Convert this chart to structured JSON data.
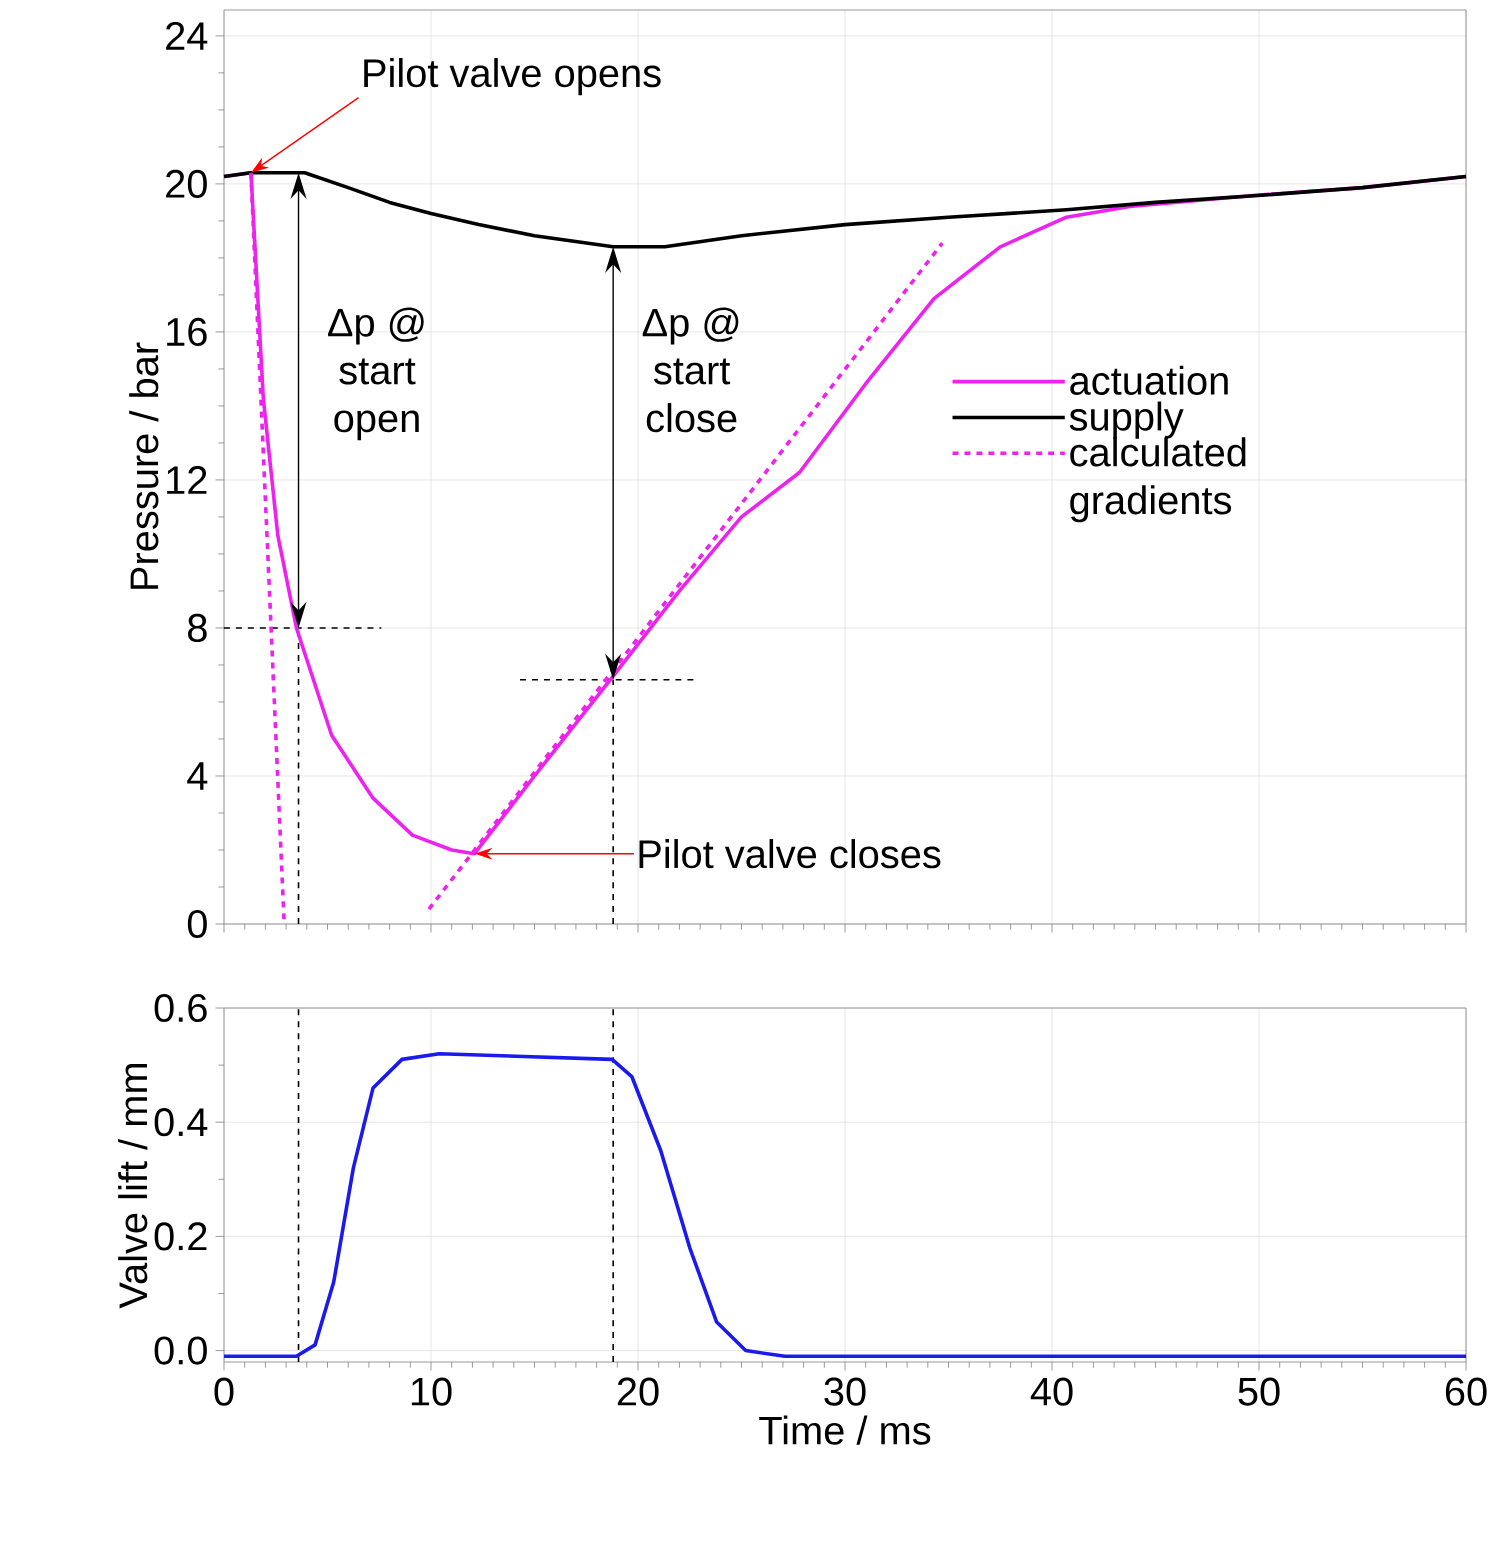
{
  "chart_data": [
    {
      "type": "line",
      "ylabel": "Pressure / bar",
      "xlim": [
        0,
        60
      ],
      "ylim": [
        0,
        24.7
      ],
      "xticks": [
        0,
        10,
        20,
        30,
        40,
        50,
        60
      ],
      "yticks": [
        0,
        4,
        8,
        12,
        16,
        20,
        24
      ],
      "tick_labels": "y",
      "grid": true,
      "legend": "right",
      "series": [
        {
          "name": "actuation",
          "color": "#ee22ee",
          "x": [
            0,
            1.3,
            1.9,
            2.6,
            3.5,
            5.2,
            7.2,
            9.1,
            11,
            12.1,
            15,
            18.8,
            22,
            25,
            27.8,
            31,
            34.3,
            37.5,
            40.7,
            43.9,
            50,
            55,
            60
          ],
          "values": [
            20.2,
            20.3,
            14.2,
            10.5,
            8.0,
            5.1,
            3.4,
            2.4,
            2.0,
            1.9,
            4.0,
            6.7,
            9.0,
            11.0,
            12.2,
            14.6,
            16.9,
            18.3,
            19.1,
            19.4,
            19.7,
            19.9,
            20.2
          ]
        },
        {
          "name": "supply",
          "color": "#000000",
          "x": [
            0,
            1.3,
            3.9,
            6,
            8,
            10,
            12.3,
            15,
            18.8,
            21.3,
            25,
            30,
            35,
            40.7,
            45,
            50.3,
            55,
            60
          ],
          "values": [
            20.2,
            20.3,
            20.3,
            19.9,
            19.5,
            19.2,
            18.9,
            18.6,
            18.3,
            18.3,
            18.6,
            18.9,
            19.1,
            19.3,
            19.5,
            19.7,
            19.9,
            20.2
          ]
        },
        {
          "name": "calculated gradients",
          "color": "#ee22ee",
          "line_style": "dashed",
          "x": [
            1.3,
            2.9
          ],
          "values": [
            20.3,
            0.1
          ]
        },
        {
          "color": "#ee22ee",
          "line_style": "dashed",
          "x": [
            9.9,
            34.7
          ],
          "values": [
            0.4,
            18.4
          ]
        }
      ],
      "ref_lines": [
        {
          "axis": "x",
          "value": 3.6,
          "line_style": "dashed",
          "color": "#000000"
        },
        {
          "axis": "y",
          "value": 8,
          "line_style": "dashed",
          "color": "#000000"
        },
        {
          "axis": "x",
          "value": 18.8,
          "line_style": "dashed",
          "color": "#000000"
        },
        {
          "axis": "y",
          "value": 6.6,
          "line_style": "dashed",
          "color": "#000000"
        }
      ],
      "annotations": [
        {
          "text": "Pilot valve opens",
          "x": 1.3,
          "y": 20.3
        },
        "Δp @ start open",
        "Δp @ start close",
        {
          "text": "Pilot valve closes",
          "x": 12.1,
          "y": 1.9
        }
      ]
    },
    {
      "type": "line",
      "xlabel": "Time / ms",
      "ylabel": "Valve lift / mm",
      "xlim": [
        0,
        60
      ],
      "ylim": [
        -0.02,
        0.6
      ],
      "xticks": [
        0,
        10,
        20,
        30,
        40,
        50,
        60
      ],
      "yticks": [
        {
          "value": 0,
          "label": "0.0"
        },
        {
          "value": 0.2,
          "label": "0.2"
        },
        {
          "value": 0.4,
          "label": "0.4"
        },
        {
          "value": 0.6,
          "label": "0.6"
        }
      ],
      "grid": true,
      "series": [
        {
          "color": "#1a1aee",
          "x": [
            0,
            3.5,
            4.4,
            5.3,
            6.25,
            7.2,
            8.6,
            10.4,
            18.75,
            19.7,
            21.1,
            22.5,
            23.8,
            25.2,
            27.1,
            60
          ],
          "values": [
            -0.01,
            -0.01,
            0.01,
            0.12,
            0.32,
            0.46,
            0.51,
            0.52,
            0.51,
            0.48,
            0.35,
            0.18,
            0.05,
            0.0,
            -0.01,
            -0.01
          ]
        }
      ],
      "ref_lines": [
        {
          "axis": "x",
          "value": 3.6,
          "line_style": "dashed",
          "color": "#000000"
        },
        {
          "axis": "x",
          "value": 18.8,
          "line_style": "dashed",
          "color": "#000000"
        }
      ]
    }
  ]
}
